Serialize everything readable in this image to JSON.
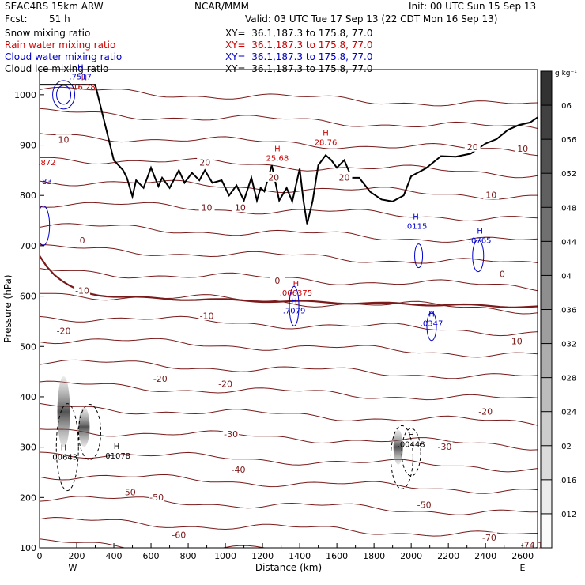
{
  "header": {
    "model": "SEAC4RS 15km ARW",
    "org": "NCAR/MMM",
    "init": "Init: 00 UTC Sun 15 Sep 13",
    "fcst_label": "Fcst:",
    "fcst_value": "51 h",
    "valid": "Valid: 03 UTC Tue 17 Sep 13 (22 CDT Mon 16 Sep 13)",
    "fields": [
      {
        "name": "Snow mixing ratio",
        "xy": "XY=  36.1,187.3 to 175.8, 77.0",
        "color": "#000000"
      },
      {
        "name": "Rain water mixing ratio",
        "xy": "XY=  36.1,187.3 to 175.8, 77.0",
        "color": "#cc0000"
      },
      {
        "name": "Cloud water mixing ratio",
        "xy": "XY=  36.1,187.3 to 175.8, 77.0",
        "color": "#0000cc"
      },
      {
        "name": "Cloud ice mixing ratio",
        "xy": "XY=  36.1,187.3 to 175.8, 77.0",
        "color": "#000000"
      }
    ]
  },
  "chart_data": {
    "type": "cross-section",
    "xlabel": "Distance (km)",
    "ylabel": "Pressure (hPa)",
    "xlim": [
      0,
      2680
    ],
    "ylim": [
      1050,
      100
    ],
    "x_ticks": [
      0,
      200,
      400,
      600,
      800,
      1000,
      1200,
      1400,
      1600,
      1800,
      2000,
      2200,
      2400,
      2600
    ],
    "y_ticks": [
      100,
      200,
      300,
      400,
      500,
      600,
      700,
      800,
      900,
      1000
    ],
    "x_end_labels": {
      "left": "W",
      "right": "E"
    },
    "colorbar": {
      "units": "g kg⁻¹",
      "ticks": [
        0.012,
        0.016,
        0.02,
        0.024,
        0.028,
        0.032,
        0.036,
        0.04,
        0.044,
        0.048,
        0.052,
        0.056,
        0.06
      ],
      "tick_labels": [
        ".012",
        ".016",
        ".02",
        ".024",
        ".028",
        ".032",
        ".036",
        ".04",
        ".044",
        ".048",
        ".052",
        ".056",
        ".06"
      ]
    },
    "temperature_contour_labels": [
      {
        "value": "-74.1",
        "x": 2650,
        "p": 105
      },
      {
        "value": "-70",
        "x": 2420,
        "p": 120
      },
      {
        "value": "-60",
        "x": 750,
        "p": 125
      },
      {
        "value": "-50",
        "x": 630,
        "p": 200
      },
      {
        "value": "-50",
        "x": 2070,
        "p": 185
      },
      {
        "value": "-50",
        "x": 480,
        "p": 210
      },
      {
        "value": "-40",
        "x": 1070,
        "p": 255
      },
      {
        "value": "-30",
        "x": 1030,
        "p": 325
      },
      {
        "value": "-30",
        "x": 2180,
        "p": 300
      },
      {
        "value": "-20",
        "x": 650,
        "p": 435
      },
      {
        "value": "-20",
        "x": 1000,
        "p": 425
      },
      {
        "value": "-20",
        "x": 2400,
        "p": 370
      },
      {
        "value": "-20",
        "x": 130,
        "p": 530
      },
      {
        "value": "-10",
        "x": 900,
        "p": 560
      },
      {
        "value": "-10",
        "x": 230,
        "p": 610
      },
      {
        "value": "-10",
        "x": 2560,
        "p": 510
      },
      {
        "value": "0",
        "x": 1280,
        "p": 630
      },
      {
        "value": "0",
        "x": 2490,
        "p": 643
      },
      {
        "value": "0",
        "x": 230,
        "p": 710
      },
      {
        "value": "10",
        "x": 900,
        "p": 775
      },
      {
        "value": "10",
        "x": 1080,
        "p": 775
      },
      {
        "value": "10",
        "x": 2430,
        "p": 800
      },
      {
        "value": "10",
        "x": 130,
        "p": 910
      },
      {
        "value": "20",
        "x": 1260,
        "p": 835
      },
      {
        "value": "20",
        "x": 890,
        "p": 865
      },
      {
        "value": "20",
        "x": 1640,
        "p": 835
      },
      {
        "value": "20",
        "x": 2330,
        "p": 895
      },
      {
        "value": "10",
        "x": 2600,
        "p": 892
      }
    ],
    "extrema_labels": [
      {
        "mark": "H",
        "value": ".00643",
        "x": 130,
        "p": 280,
        "color": "#000000"
      },
      {
        "mark": "H",
        "value": ".01078",
        "x": 415,
        "p": 282,
        "color": "#000000"
      },
      {
        "mark": "H",
        "value": ".00448",
        "x": 2000,
        "p": 305,
        "color": "#000000"
      },
      {
        "mark": "H",
        "value": ".7079",
        "x": 1370,
        "p": 570,
        "color": "#0000cc"
      },
      {
        "mark": "H",
        "value": ".006375",
        "x": 1380,
        "p": 606,
        "color": "#cc0000"
      },
      {
        "mark": "H",
        "value": ".0347",
        "x": 2110,
        "p": 545,
        "color": "#0000cc"
      },
      {
        "mark": "H",
        "value": ".0765",
        "x": 2370,
        "p": 710,
        "color": "#0000cc"
      },
      {
        "mark": "H",
        "value": ".0115",
        "x": 2025,
        "p": 738,
        "color": "#0000cc"
      },
      {
        "mark": "H",
        "value": "25.68",
        "x": 1280,
        "p": 873,
        "color": "#cc0000"
      },
      {
        "mark": "H",
        "value": "28.76",
        "x": 1540,
        "p": 905,
        "color": "#cc0000"
      },
      {
        "mark": "H",
        "value": "16.28",
        "x": 240,
        "p": 1015,
        "color": "#cc0000"
      },
      {
        "mark": "H",
        "value": ".7517",
        "x": 220,
        "p": 1035,
        "color": "#0000cc"
      },
      {
        "mark": "",
        "value": ".872",
        "x": 40,
        "p": 865,
        "color": "#cc0000"
      },
      {
        "mark": "",
        "value": "83",
        "x": 40,
        "p": 827,
        "color": "#0000cc"
      }
    ],
    "terrain": {
      "x": [
        0,
        300,
        400,
        450,
        470,
        500,
        520,
        560,
        600,
        640,
        660,
        700,
        750,
        780,
        820,
        860,
        890,
        930,
        980,
        1020,
        1060,
        1100,
        1140,
        1170,
        1190,
        1210,
        1250,
        1290,
        1330,
        1360,
        1400,
        1420,
        1440,
        1470,
        1500,
        1540,
        1570,
        1600,
        1640,
        1680,
        1720,
        1780,
        1840,
        1900,
        1960,
        2000,
        2080,
        2160,
        2240,
        2320,
        2400,
        2460,
        2520,
        2580,
        2640,
        2680
      ],
      "p": [
        1020,
        1020,
        870,
        850,
        835,
        798,
        830,
        815,
        855,
        818,
        835,
        815,
        850,
        825,
        845,
        830,
        850,
        825,
        830,
        800,
        820,
        790,
        835,
        790,
        815,
        808,
        860,
        790,
        815,
        788,
        853,
        790,
        743,
        790,
        860,
        880,
        870,
        855,
        870,
        835,
        835,
        807,
        792,
        788,
        800,
        838,
        854,
        878,
        877,
        883,
        903,
        912,
        930,
        940,
        945,
        955
      ]
    },
    "freezing_level_p": 600
  }
}
